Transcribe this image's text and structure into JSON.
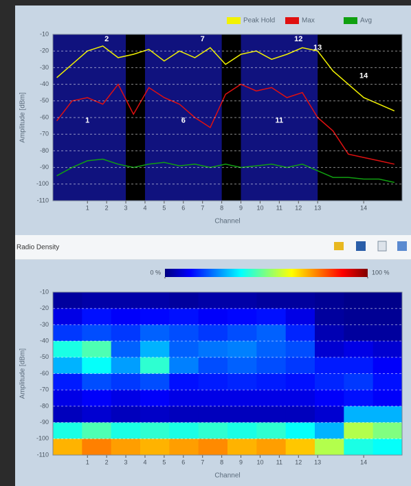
{
  "window_title": "Radio Density",
  "chart_data": [
    {
      "type": "line",
      "xlabel": "Channel",
      "ylabel": "Amplitude [dBm]",
      "xlim": [
        2403,
        2494
      ],
      "ylim": [
        -110,
        -10
      ],
      "xticks": [
        {
          "value": 2412,
          "label": "1"
        },
        {
          "value": 2417,
          "label": "2"
        },
        {
          "value": 2422,
          "label": "3"
        },
        {
          "value": 2427,
          "label": "4"
        },
        {
          "value": 2432,
          "label": "5"
        },
        {
          "value": 2437,
          "label": "6"
        },
        {
          "value": 2442,
          "label": "7"
        },
        {
          "value": 2447,
          "label": "8"
        },
        {
          "value": 2452,
          "label": "9"
        },
        {
          "value": 2457,
          "label": "10"
        },
        {
          "value": 2462,
          "label": "11"
        },
        {
          "value": 2467,
          "label": "12"
        },
        {
          "value": 2472,
          "label": "13"
        },
        {
          "value": 2484,
          "label": "14"
        }
      ],
      "yticks": [
        -10,
        -20,
        -30,
        -40,
        -50,
        -60,
        -70,
        -80,
        -90,
        -100,
        -110
      ],
      "grid": true,
      "legend": "top-right",
      "regions": [
        {
          "from": 2403,
          "to": 2422
        },
        {
          "from": 2427,
          "to": 2447
        },
        {
          "from": 2452,
          "to": 2472
        }
      ],
      "x": [
        2404,
        2408,
        2412,
        2416,
        2420,
        2424,
        2428,
        2432,
        2436,
        2440,
        2444,
        2448,
        2452,
        2456,
        2460,
        2464,
        2468,
        2472,
        2476,
        2480,
        2484,
        2488,
        2492
      ],
      "series": [
        {
          "name": "Peak Hold",
          "color": "#f2f200",
          "values": [
            -36,
            -28,
            -20,
            -17,
            -24,
            -22,
            -19,
            -26,
            -20,
            -24,
            -18,
            -28,
            -22,
            -20,
            -25,
            -22,
            -18,
            -20,
            -32,
            -40,
            -48,
            -52,
            -56
          ]
        },
        {
          "name": "Max",
          "color": "#e01010",
          "values": [
            -62,
            -50,
            -48,
            -52,
            -40,
            -58,
            -42,
            -48,
            -52,
            -60,
            -66,
            -46,
            -40,
            -44,
            -42,
            -48,
            -45,
            -60,
            -68,
            -82,
            -84,
            -86,
            -88
          ]
        },
        {
          "name": "Avg",
          "color": "#10a010",
          "values": [
            -95,
            -90,
            -86,
            -85,
            -88,
            -90,
            -88,
            -87,
            -89,
            -88,
            -90,
            -88,
            -90,
            -89,
            -88,
            -90,
            -88,
            -92,
            -96,
            -96,
            -97,
            -97,
            -99
          ]
        }
      ],
      "annotations": [
        {
          "text": "1",
          "x": 2412,
          "y": -62
        },
        {
          "text": "2",
          "x": 2417,
          "y": -13
        },
        {
          "text": "6",
          "x": 2437,
          "y": -62
        },
        {
          "text": "7",
          "x": 2442,
          "y": -13
        },
        {
          "text": "11",
          "x": 2462,
          "y": -62
        },
        {
          "text": "12",
          "x": 2467,
          "y": -13
        },
        {
          "text": "13",
          "x": 2472,
          "y": -18
        },
        {
          "text": "14",
          "x": 2484,
          "y": -35
        }
      ]
    },
    {
      "type": "heatmap",
      "xlabel": "Channel",
      "ylabel": "Amplitude [dBm]",
      "xlim": [
        2403,
        2494
      ],
      "ylim": [
        -110,
        -10
      ],
      "clim": [
        0,
        100
      ],
      "xticks": [
        {
          "value": 2412,
          "label": "1"
        },
        {
          "value": 2417,
          "label": "2"
        },
        {
          "value": 2422,
          "label": "3"
        },
        {
          "value": 2427,
          "label": "4"
        },
        {
          "value": 2432,
          "label": "5"
        },
        {
          "value": 2437,
          "label": "6"
        },
        {
          "value": 2442,
          "label": "7"
        },
        {
          "value": 2447,
          "label": "8"
        },
        {
          "value": 2452,
          "label": "9"
        },
        {
          "value": 2457,
          "label": "10"
        },
        {
          "value": 2462,
          "label": "11"
        },
        {
          "value": 2467,
          "label": "12"
        },
        {
          "value": 2472,
          "label": "13"
        },
        {
          "value": 2484,
          "label": "14"
        }
      ],
      "yticks": [
        -10,
        -20,
        -30,
        -40,
        -50,
        -60,
        -70,
        -80,
        -90,
        -100,
        -110
      ],
      "grid": true,
      "colorbar_ticks": [
        {
          "value": 0,
          "label": "0 %"
        },
        {
          "value": 100,
          "label": "100 %"
        }
      ],
      "z": [
        [
          3,
          4,
          4,
          4,
          3,
          4,
          4,
          3,
          3,
          2,
          1,
          1
        ],
        [
          10,
          14,
          12,
          13,
          14,
          12,
          13,
          14,
          10,
          3,
          2,
          2
        ],
        [
          18,
          20,
          18,
          22,
          20,
          18,
          20,
          22,
          16,
          5,
          3,
          3
        ],
        [
          40,
          45,
          22,
          30,
          22,
          24,
          25,
          22,
          20,
          8,
          10,
          8
        ],
        [
          30,
          38,
          28,
          42,
          25,
          20,
          22,
          20,
          18,
          15,
          15,
          12
        ],
        [
          15,
          20,
          18,
          20,
          14,
          15,
          16,
          15,
          14,
          16,
          18,
          14
        ],
        [
          10,
          12,
          10,
          12,
          10,
          10,
          10,
          10,
          10,
          12,
          14,
          12
        ],
        [
          6,
          8,
          6,
          7,
          6,
          6,
          6,
          6,
          6,
          8,
          30,
          30
        ],
        [
          40,
          45,
          40,
          42,
          40,
          42,
          40,
          42,
          38,
          30,
          55,
          50
        ],
        [
          70,
          75,
          72,
          70,
          72,
          74,
          70,
          72,
          68,
          55,
          40,
          38
        ]
      ]
    }
  ]
}
